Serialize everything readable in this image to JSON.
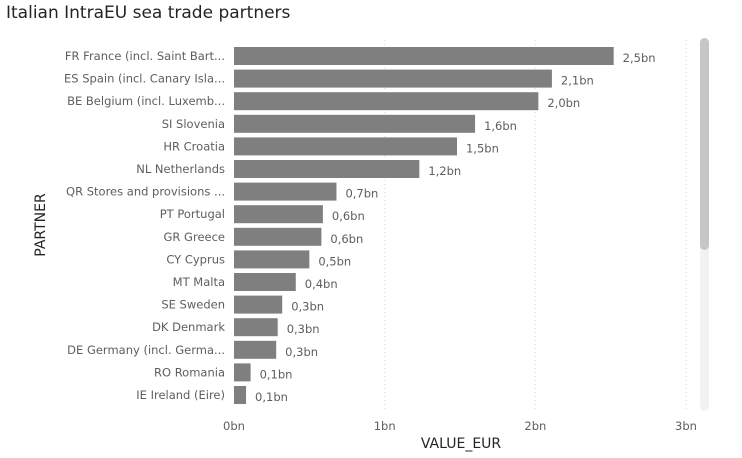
{
  "title": "Italian IntraEU sea trade partners",
  "colors": {
    "bar": "#7f7f7f",
    "grid": "#d9d9d9",
    "text": "#605e5c"
  },
  "chart_data": {
    "type": "bar",
    "orientation": "horizontal",
    "xlabel": "VALUE_EUR",
    "ylabel": "PARTNER",
    "xlim": [
      0,
      3
    ],
    "x_ticks": [
      0,
      1,
      2,
      3
    ],
    "x_tick_labels": [
      "0bn",
      "1bn",
      "2bn",
      "3bn"
    ],
    "grid": "vertical dotted",
    "categories": [
      "FR France (incl. Saint Bart...",
      "ES Spain (incl. Canary Isla...",
      "BE Belgium (incl. Luxemb...",
      "SI Slovenia",
      "HR Croatia",
      "NL Netherlands",
      "QR Stores and provisions ...",
      "PT Portugal",
      "GR Greece",
      "CY Cyprus",
      "MT Malta",
      "SE Sweden",
      "DK Denmark",
      "DE Germany (incl. Germa...",
      "RO Romania",
      "IE Ireland (Eire)"
    ],
    "values": [
      2.52,
      2.11,
      2.02,
      1.6,
      1.48,
      1.23,
      0.68,
      0.59,
      0.58,
      0.5,
      0.41,
      0.32,
      0.29,
      0.28,
      0.11,
      0.08
    ],
    "data_labels": [
      "2,5bn",
      "2,1bn",
      "2,0bn",
      "1,6bn",
      "1,5bn",
      "1,2bn",
      "0,7bn",
      "0,6bn",
      "0,6bn",
      "0,5bn",
      "0,4bn",
      "0,3bn",
      "0,3bn",
      "0,3bn",
      "0,1bn",
      "0,1bn"
    ]
  }
}
